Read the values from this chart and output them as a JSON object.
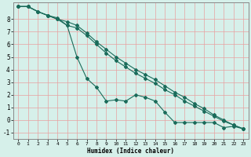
{
  "xlabel": "Humidex (Indice chaleur)",
  "bg_color": "#d6f0ea",
  "grid_color": "#e8a0a0",
  "line_color": "#1a6b5a",
  "xlim": [
    -0.5,
    23.5
  ],
  "ylim": [
    -1.5,
    9.3
  ],
  "yticks": [
    -1,
    0,
    1,
    2,
    3,
    4,
    5,
    6,
    7,
    8
  ],
  "xticks": [
    0,
    1,
    2,
    3,
    4,
    5,
    6,
    7,
    8,
    9,
    10,
    11,
    12,
    13,
    14,
    15,
    16,
    17,
    18,
    19,
    20,
    21,
    22,
    23
  ],
  "line1_x": [
    0,
    1,
    2,
    3,
    4,
    5,
    6,
    7,
    8,
    9,
    10,
    11,
    12,
    13,
    14,
    15,
    16,
    17,
    18,
    19,
    20,
    21,
    22,
    23
  ],
  "line1_y": [
    9.0,
    9.0,
    8.6,
    8.3,
    8.1,
    7.5,
    7.3,
    6.7,
    6.0,
    5.3,
    4.7,
    4.2,
    3.7,
    3.3,
    2.9,
    2.4,
    2.0,
    1.5,
    1.1,
    0.7,
    0.3,
    -0.1,
    -0.4,
    -0.7
  ],
  "line2_x": [
    0,
    1,
    2,
    3,
    4,
    5,
    6,
    7,
    8,
    9,
    10,
    11,
    12,
    13,
    14,
    15,
    16,
    17,
    18,
    19,
    20,
    21,
    22,
    23
  ],
  "line2_y": [
    9.0,
    9.0,
    8.6,
    8.3,
    8.0,
    7.5,
    5.0,
    3.3,
    2.6,
    1.5,
    1.6,
    1.5,
    2.0,
    1.8,
    1.5,
    0.6,
    -0.2,
    -0.2,
    -0.2,
    -0.2,
    -0.2,
    -0.6,
    -0.5,
    -0.7
  ],
  "line3_x": [
    0,
    1,
    2,
    3,
    4,
    5,
    6,
    7,
    8,
    9,
    10,
    11,
    12,
    13,
    14,
    15,
    16,
    17,
    18,
    19,
    20,
    21,
    22,
    23
  ],
  "line3_y": [
    9.0,
    9.0,
    8.6,
    8.3,
    8.0,
    7.8,
    7.5,
    6.9,
    6.2,
    5.6,
    5.0,
    4.5,
    4.0,
    3.6,
    3.2,
    2.7,
    2.2,
    1.8,
    1.3,
    0.9,
    0.4,
    0.0,
    -0.4,
    -0.7
  ]
}
